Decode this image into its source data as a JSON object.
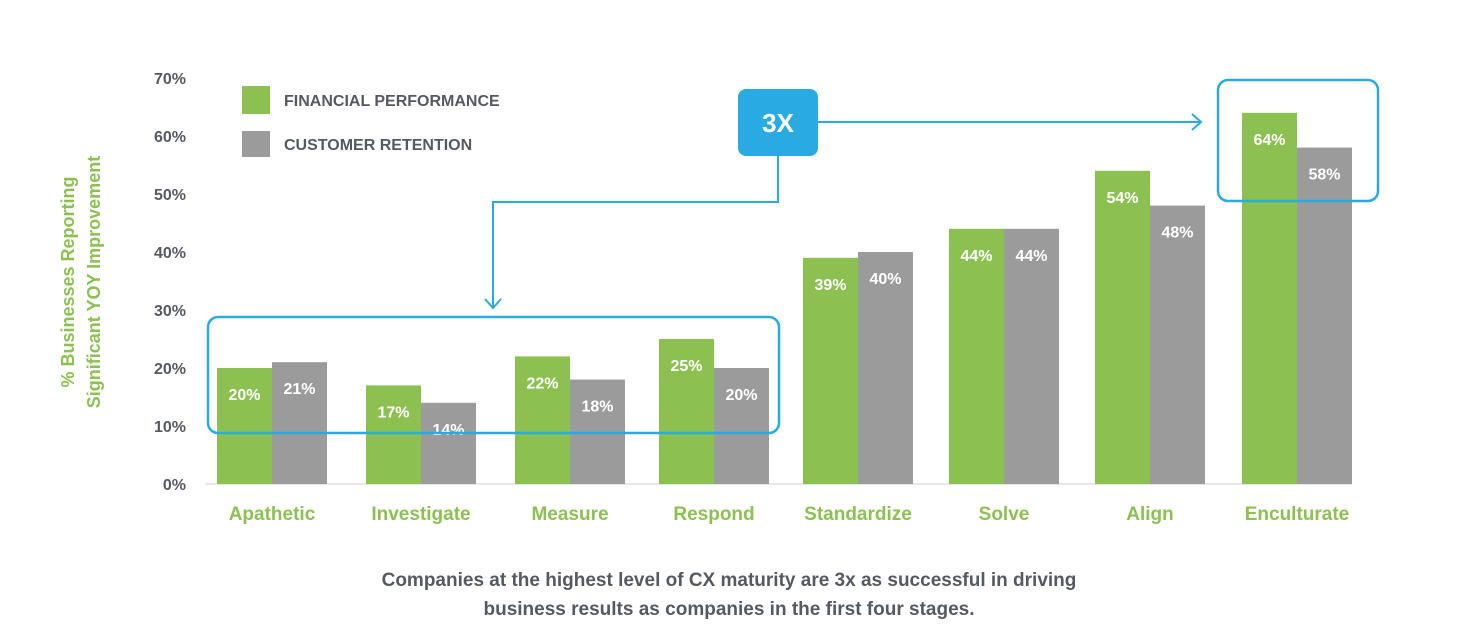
{
  "chart_data": {
    "type": "bar",
    "categories": [
      "Apathetic",
      "Investigate",
      "Measure",
      "Respond",
      "Standardize",
      "Solve",
      "Align",
      "Enculturate"
    ],
    "series": [
      {
        "name": "FINANCIAL PERFORMANCE",
        "color": "#8cc152",
        "values": [
          20,
          17,
          22,
          25,
          39,
          44,
          54,
          64
        ],
        "labels": [
          "20%",
          "17%",
          "22%",
          "25%",
          "39%",
          "44%",
          "54%",
          "64%"
        ]
      },
      {
        "name": "CUSTOMER RETENTION",
        "color": "#9b9b9b",
        "values": [
          21,
          14,
          18,
          20,
          40,
          44,
          48,
          58
        ],
        "labels": [
          "21%",
          "14%",
          "18%",
          "20%",
          "40%",
          "44%",
          "48%",
          "58%"
        ]
      }
    ],
    "yticks": [
      "0%",
      "10%",
      "20%",
      "30%",
      "40%",
      "50%",
      "60%",
      "70%"
    ],
    "ylim": [
      0,
      70
    ],
    "ylabel": [
      "% Businesses Reporting",
      "Significant YOY Improvement"
    ],
    "xlabel": "",
    "legend_position": "top-left",
    "grid": false,
    "annotation": {
      "text": "3X",
      "color": "#29abe2"
    },
    "caption": [
      "Companies at the highest level of CX maturity are 3x as successful in driving",
      "business results as companies in the first four stages."
    ]
  },
  "colors": {
    "accent": "#29abe2",
    "text": "#555a60",
    "green": "#8cc152",
    "gray": "#9b9b9b"
  }
}
